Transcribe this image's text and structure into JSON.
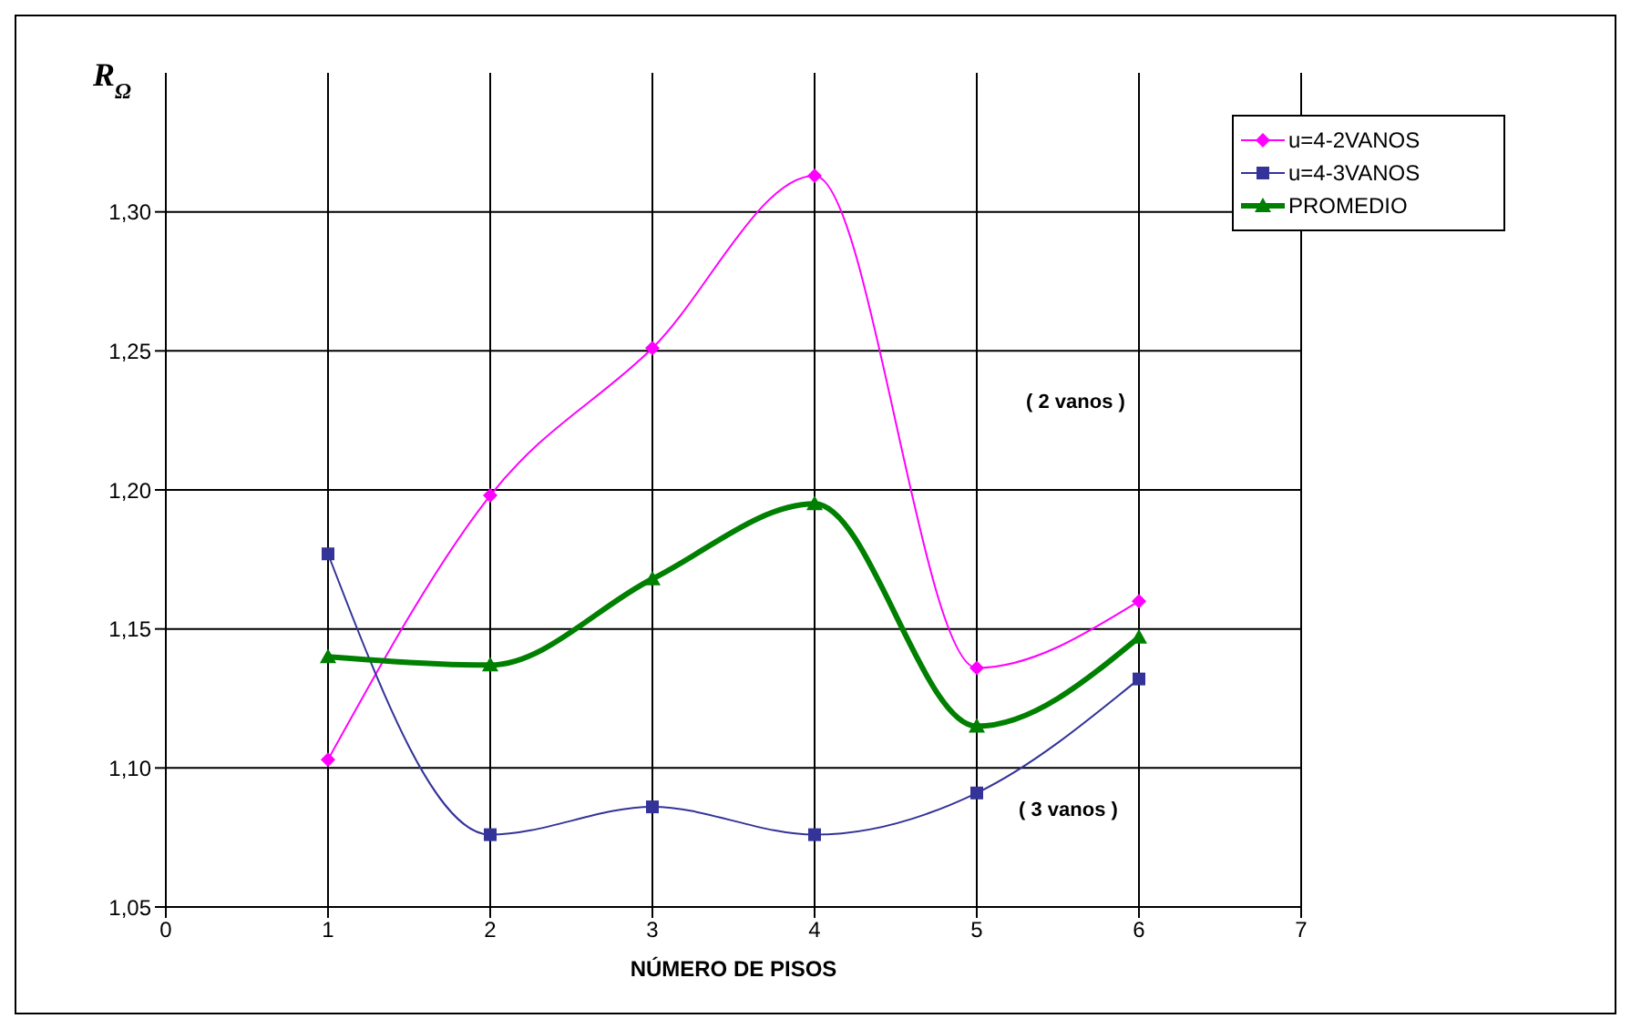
{
  "chart_data": {
    "type": "line",
    "xlabel": "NÚMERO DE PISOS",
    "ylabel": "R$_{Ω}$",
    "x": [
      1,
      2,
      3,
      4,
      5,
      6
    ],
    "series": [
      {
        "name": "u=4-2VANOS",
        "color": "#ff00ff",
        "marker": "diamond",
        "values": [
          1.103,
          1.198,
          1.251,
          1.313,
          1.136,
          1.16
        ]
      },
      {
        "name": "u=4-3VANOS",
        "color": "#333399",
        "marker": "square",
        "values": [
          1.177,
          1.076,
          1.086,
          1.076,
          1.091,
          1.132
        ]
      },
      {
        "name": "PROMEDIO",
        "color": "#008000",
        "marker": "triangle",
        "values": [
          1.14,
          1.137,
          1.168,
          1.195,
          1.115,
          1.147
        ]
      }
    ],
    "xlim": [
      0,
      7
    ],
    "xticks": [
      0,
      1,
      2,
      3,
      4,
      5,
      6,
      7
    ],
    "ylim": [
      1.05,
      1.35
    ],
    "yticks": [
      {
        "value": 1.05,
        "label": "1,05"
      },
      {
        "value": 1.1,
        "label": "1,10"
      },
      {
        "value": 1.15,
        "label": "1,15"
      },
      {
        "value": 1.2,
        "label": "1,20"
      },
      {
        "value": 1.25,
        "label": "1,25"
      },
      {
        "value": 1.3,
        "label": "1,30"
      }
    ],
    "grid": true,
    "legend": "top right",
    "annotations": [
      "( 2 vanos )",
      "( 3 vanos )"
    ]
  }
}
